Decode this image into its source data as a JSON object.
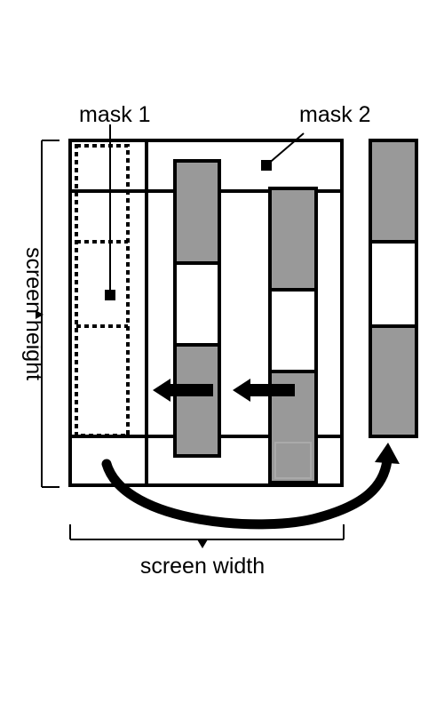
{
  "labels": {
    "mask1": "mask 1",
    "mask2": "mask 2",
    "screen_height": "screen height",
    "screen_width": "screen width"
  },
  "colors": {
    "stroke": "#000000",
    "strip_fill": "#999999",
    "window_fill": "#ffffff",
    "background": "#ffffff"
  }
}
